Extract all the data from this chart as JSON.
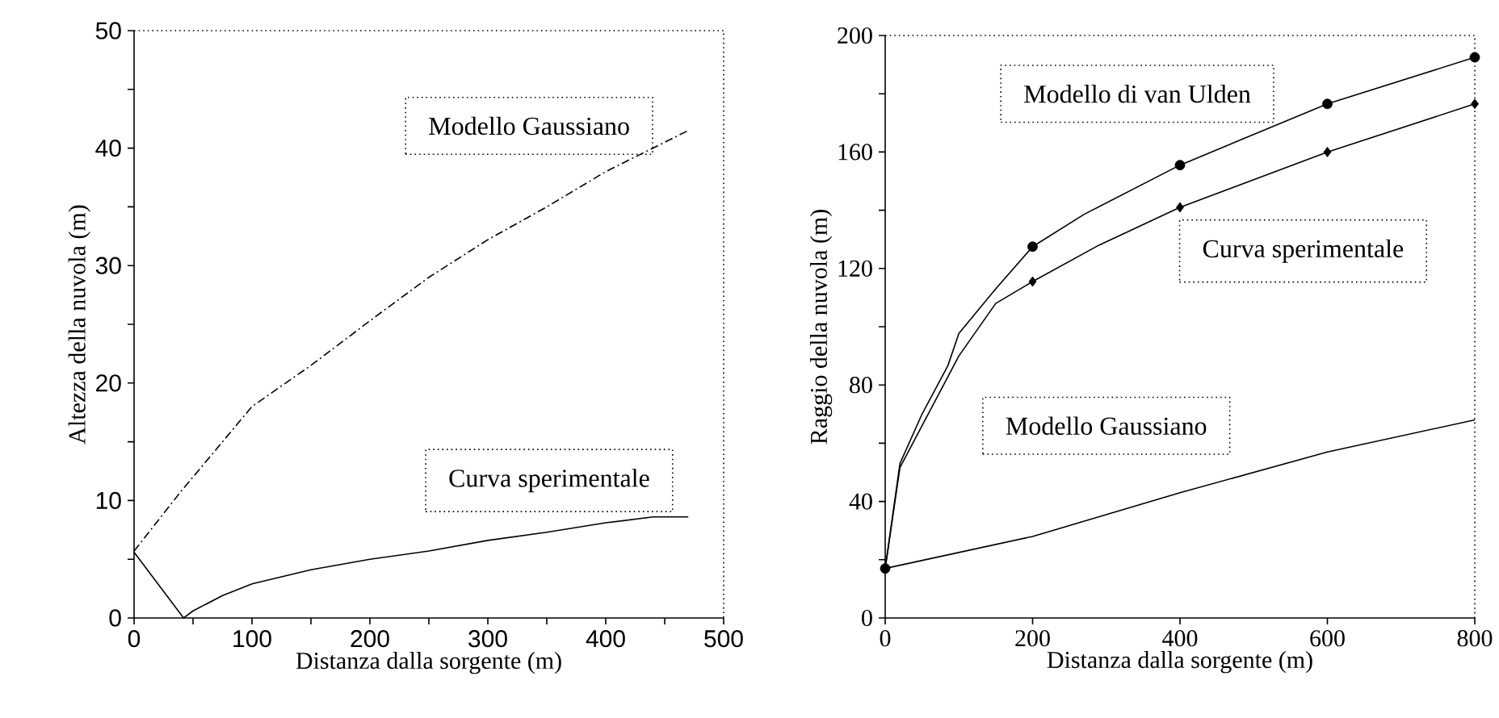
{
  "chart_data": [
    {
      "type": "line",
      "xlabel": "Distanza dalla sorgente (m)",
      "ylabel": "Altezza della nuvola (m)",
      "xlim": [
        0,
        500
      ],
      "ylim": [
        0,
        50
      ],
      "xticks": [
        0,
        {
          "value": 50,
          "label": null
        },
        100,
        {
          "value": 150,
          "label": null
        },
        200,
        {
          "value": 250,
          "label": null
        },
        300,
        {
          "value": 350,
          "label": null
        },
        400,
        {
          "value": 450,
          "label": null
        },
        500
      ],
      "yticks": [
        0,
        {
          "value": 5,
          "label": null
        },
        10,
        {
          "value": 15,
          "label": null
        },
        20,
        {
          "value": 25,
          "label": null
        },
        30,
        {
          "value": 35,
          "label": null
        },
        40,
        {
          "value": 45,
          "label": null
        },
        50
      ],
      "annotations": [
        "Modello Gaussiano",
        "Curva sperimentale"
      ],
      "series": [
        {
          "color": "#000000",
          "line_style": "dashed",
          "x": [
            0,
            40,
            100,
            150,
            200,
            250,
            300,
            350,
            400,
            470
          ],
          "values": [
            5.7,
            10.8,
            18,
            21.5,
            25.3,
            29,
            32.2,
            35,
            38,
            41.5
          ]
        },
        {
          "color": "#000000",
          "line_style": "solid",
          "x": [
            0,
            42,
            50,
            75,
            100,
            150,
            200,
            250,
            300,
            350,
            400,
            440,
            470
          ],
          "values": [
            5.6,
            0,
            0.6,
            1.9,
            2.9,
            4.1,
            5,
            5.7,
            6.6,
            7.3,
            8.1,
            8.6,
            8.6
          ]
        }
      ]
    },
    {
      "type": "line",
      "xlabel": "Distanza dalla sorgente (m)",
      "ylabel": "Raggio della nuvola (m)",
      "xlim": [
        0,
        800
      ],
      "ylim": [
        0,
        200
      ],
      "xticks": [
        0,
        200,
        400,
        600,
        800
      ],
      "yticks": [
        0,
        {
          "value": 20,
          "label": null
        },
        40,
        {
          "value": 60,
          "label": null
        },
        80,
        {
          "value": 100,
          "label": null
        },
        120,
        {
          "value": 140,
          "label": null
        },
        160,
        {
          "value": 180,
          "label": null
        },
        200
      ],
      "annotations": [
        "Modello di van Ulden",
        "Curva sperimentale",
        "Modello Gaussiano"
      ],
      "series": [
        {
          "color": "#000000",
          "line_style": "solid",
          "x": [
            0,
            20,
            50,
            85,
            100,
            150,
            200,
            270,
            400,
            600,
            800
          ],
          "values": [
            17,
            53,
            70,
            86.6,
            97.7,
            113,
            127.5,
            138.6,
            155.5,
            176.5,
            192.5
          ]
        },
        {
          "type": "scatter",
          "color": "#000000",
          "marker": "circle",
          "x": [
            0,
            200,
            400,
            600,
            800
          ],
          "values": [
            17,
            127.5,
            155.5,
            176.5,
            192.5
          ]
        },
        {
          "color": "#000000",
          "line_style": "solid",
          "x": [
            0,
            20,
            50,
            100,
            150,
            200,
            290,
            400,
            600,
            800
          ],
          "values": [
            17,
            51.6,
            66,
            90,
            108,
            115.5,
            128,
            141,
            160,
            176.5
          ]
        },
        {
          "type": "scatter",
          "color": "#000000",
          "marker": "diamond",
          "x": [
            200,
            400,
            600,
            800
          ],
          "values": [
            115.5,
            141,
            160,
            176.5
          ]
        },
        {
          "color": "#000000",
          "line_style": "solid",
          "x": [
            0,
            200,
            400,
            600,
            800
          ],
          "values": [
            17,
            28,
            43,
            57,
            68
          ]
        }
      ]
    }
  ]
}
